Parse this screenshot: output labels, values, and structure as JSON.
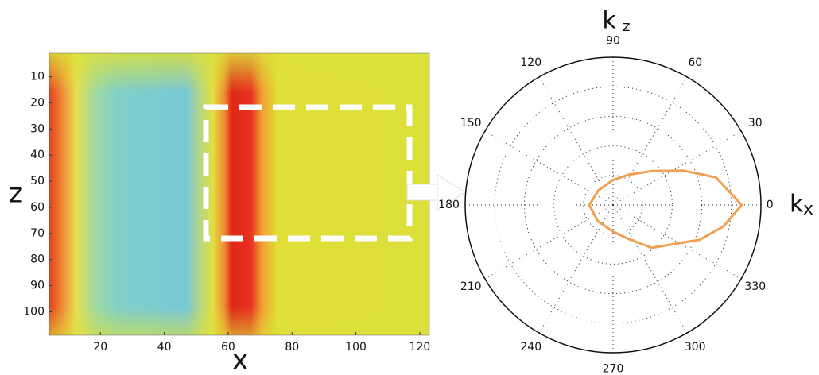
{
  "chart_data": [
    {
      "type": "heatmap",
      "xlabel": "x",
      "ylabel": "z",
      "xlim": [
        4,
        123
      ],
      "ylim": [
        109,
        1
      ],
      "y_reversed": true,
      "xticks": [
        20,
        40,
        60,
        80,
        100,
        120
      ],
      "yticks": [
        10,
        20,
        30,
        40,
        50,
        60,
        70,
        80,
        90,
        100
      ]
    },
    {
      "type": "polar",
      "ylabel_main": "k",
      "ylabel_sub": "z",
      "xlabel_main": "k",
      "xlabel_sub": "x",
      "angle_ticks": [
        0,
        30,
        60,
        90,
        120,
        150,
        180,
        210,
        240,
        270,
        300,
        330
      ],
      "rlim": [
        0,
        1
      ],
      "rticks": [
        0.2,
        0.4,
        0.6,
        0.8
      ],
      "grid": true,
      "series": [
        {
          "color": "#f0a050",
          "theta": [
            0,
            15,
            26,
            41,
            63,
            90,
            136,
            180,
            226,
            270,
            294,
            312,
            338,
            349
          ],
          "r": [
            0.87,
            0.72,
            0.53,
            0.35,
            0.23,
            0.17,
            0.14,
            0.16,
            0.15,
            0.18,
            0.25,
            0.39,
            0.63,
            0.76
          ]
        }
      ]
    }
  ]
}
